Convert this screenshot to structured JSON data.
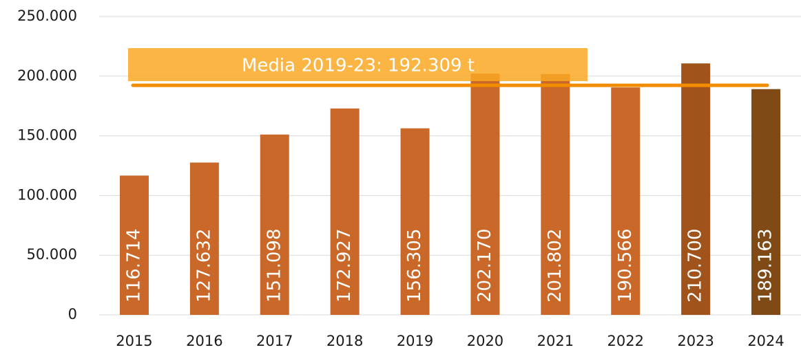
{
  "chart_data": {
    "type": "bar",
    "categories": [
      "2015",
      "2016",
      "2017",
      "2018",
      "2019",
      "2020",
      "2021",
      "2022",
      "2023",
      "2024"
    ],
    "values": [
      116714,
      127632,
      151098,
      172927,
      156305,
      202170,
      201802,
      190566,
      210700,
      189163
    ],
    "value_labels": [
      "116.714",
      "127.632",
      "151.098",
      "172.927",
      "156.305",
      "202.170",
      "201.802",
      "190.566",
      "210.700",
      "189.163"
    ],
    "colors": [
      "#c96828",
      "#c96828",
      "#c96828",
      "#c96828",
      "#c96828",
      "#c96828",
      "#c96828",
      "#c96828",
      "#a0531a",
      "#7f4a16"
    ],
    "ylim": [
      0,
      250000
    ],
    "yticks": [
      0,
      {
        "value": 50000,
        "label": "50.000"
      },
      {
        "value": 100000,
        "label": "100.000"
      },
      {
        "value": 150000,
        "label": "150.000"
      },
      {
        "value": 200000,
        "label": "200.000"
      },
      {
        "value": 250000,
        "label": "250.000"
      }
    ],
    "grid": true,
    "average": {
      "value": 192309,
      "label": "Media 2019-23: 192.309 t",
      "color": "#f28c00"
    }
  }
}
